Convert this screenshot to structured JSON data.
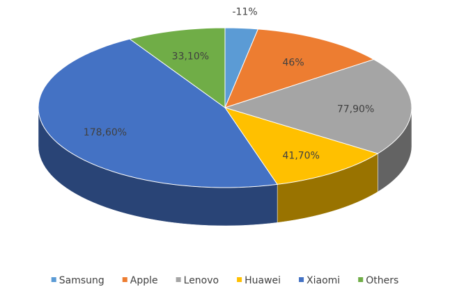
{
  "chart_data": {
    "type": "pie",
    "three_d": true,
    "categories": [
      "Samsung",
      "Apple",
      "Lenovo",
      "Huawei",
      "Xiaomi",
      "Others"
    ],
    "values": [
      -11,
      46,
      77.9,
      41.7,
      178.6,
      33.1
    ],
    "value_labels": [
      "-11%",
      "46%",
      "77,90%",
      "41,70%",
      "178,60%",
      "33,10%"
    ],
    "colors": [
      "#5b9bd5",
      "#ed7d31",
      "#a5a5a5",
      "#ffc000",
      "#4472c4",
      "#70ad47"
    ],
    "legend": "bottom"
  }
}
